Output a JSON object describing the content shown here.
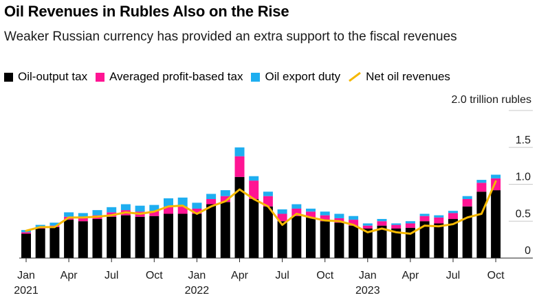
{
  "title": "Oil Revenues in Rubles Also on the Rise",
  "subtitle": "Weaker Russian currency has provided an extra support to the fiscal revenues",
  "legend": [
    {
      "label": "Oil-output tax",
      "color": "#000000",
      "kind": "box"
    },
    {
      "label": "Averaged profit-based tax",
      "color": "#ff1493",
      "kind": "box"
    },
    {
      "label": "Oil export duty",
      "color": "#1eaef0",
      "kind": "box"
    },
    {
      "label": "Net oil revenues",
      "color": "#f5b800",
      "kind": "line"
    }
  ],
  "chart_data": {
    "type": "bar",
    "stacked": true,
    "title": "Oil Revenues in Rubles Also on the Rise",
    "unit_label": "2.0 trillion rubles",
    "ylim": [
      0,
      2.0
    ],
    "yticks": [
      {
        "value": 0,
        "label": "0"
      },
      {
        "value": 0.5,
        "label": "0.5"
      },
      {
        "value": 1.0,
        "label": "1.0"
      },
      {
        "value": 1.5,
        "label": "1.5"
      },
      {
        "value": 2.0,
        "label": "2.0 trillion rubles"
      }
    ],
    "categories": [
      "Jan 2021",
      "Feb 2021",
      "Mar 2021",
      "Apr 2021",
      "May 2021",
      "Jun 2021",
      "Jul 2021",
      "Aug 2021",
      "Sep 2021",
      "Oct 2021",
      "Nov 2021",
      "Dec 2021",
      "Jan 2022",
      "Feb 2022",
      "Mar 2022",
      "Apr 2022",
      "May 2022",
      "Jun 2022",
      "Jul 2022",
      "Aug 2022",
      "Sep 2022",
      "Oct 2022",
      "Nov 2022",
      "Dec 2022",
      "Jan 2023",
      "Feb 2023",
      "Mar 2023",
      "Apr 2023",
      "May 2023",
      "Jun 2023",
      "Jul 2023",
      "Aug 2023",
      "Sep 2023",
      "Oct 2023"
    ],
    "xtick_labels": [
      {
        "index": 0,
        "line1": "Jan",
        "line2": "2021"
      },
      {
        "index": 3,
        "line1": "Apr",
        "line2": ""
      },
      {
        "index": 6,
        "line1": "Jul",
        "line2": ""
      },
      {
        "index": 9,
        "line1": "Oct",
        "line2": ""
      },
      {
        "index": 12,
        "line1": "Jan",
        "line2": "2022"
      },
      {
        "index": 15,
        "line1": "Apr",
        "line2": ""
      },
      {
        "index": 18,
        "line1": "Jul",
        "line2": ""
      },
      {
        "index": 21,
        "line1": "Oct",
        "line2": ""
      },
      {
        "index": 24,
        "line1": "Jan",
        "line2": "2023"
      },
      {
        "index": 27,
        "line1": "Apr",
        "line2": ""
      },
      {
        "index": 30,
        "line1": "Jul",
        "line2": ""
      },
      {
        "index": 33,
        "line1": "Oct",
        "line2": ""
      }
    ],
    "series": [
      {
        "name": "Oil-output tax",
        "color": "#000000",
        "values": [
          0.33,
          0.4,
          0.42,
          0.52,
          0.5,
          0.53,
          0.56,
          0.58,
          0.56,
          0.57,
          0.6,
          0.6,
          0.6,
          0.73,
          0.76,
          1.1,
          0.8,
          0.7,
          0.5,
          0.57,
          0.55,
          0.5,
          0.48,
          0.44,
          0.4,
          0.44,
          0.4,
          0.41,
          0.5,
          0.47,
          0.53,
          0.7,
          0.9,
          0.92
        ]
      },
      {
        "name": "Averaged profit-based tax",
        "color": "#ff1493",
        "values": [
          0.02,
          0.02,
          0.02,
          0.04,
          0.05,
          0.05,
          0.06,
          0.07,
          0.07,
          0.07,
          0.1,
          0.1,
          0.07,
          0.07,
          0.08,
          0.28,
          0.25,
          0.14,
          0.1,
          0.1,
          0.08,
          0.08,
          0.06,
          0.08,
          0.04,
          0.06,
          0.05,
          0.06,
          0.07,
          0.08,
          0.08,
          0.1,
          0.12,
          0.16
        ]
      },
      {
        "name": "Oil export duty",
        "color": "#1eaef0",
        "values": [
          0.03,
          0.03,
          0.04,
          0.06,
          0.06,
          0.07,
          0.07,
          0.08,
          0.08,
          0.08,
          0.11,
          0.12,
          0.08,
          0.07,
          0.08,
          0.12,
          0.06,
          0.06,
          0.06,
          0.06,
          0.04,
          0.05,
          0.06,
          0.05,
          0.03,
          0.03,
          0.02,
          0.03,
          0.03,
          0.03,
          0.03,
          0.04,
          0.04,
          0.05
        ]
      }
    ],
    "line": {
      "name": "Net oil revenues",
      "color": "#f5b800",
      "values": [
        0.37,
        0.42,
        0.42,
        0.55,
        0.55,
        0.56,
        0.58,
        0.62,
        0.6,
        0.63,
        0.7,
        0.71,
        0.6,
        0.7,
        0.77,
        0.93,
        0.8,
        0.7,
        0.45,
        0.6,
        0.55,
        0.51,
        0.5,
        0.45,
        0.35,
        0.4,
        0.35,
        0.33,
        0.44,
        0.43,
        0.46,
        0.55,
        0.6,
        1.04
      ]
    }
  }
}
